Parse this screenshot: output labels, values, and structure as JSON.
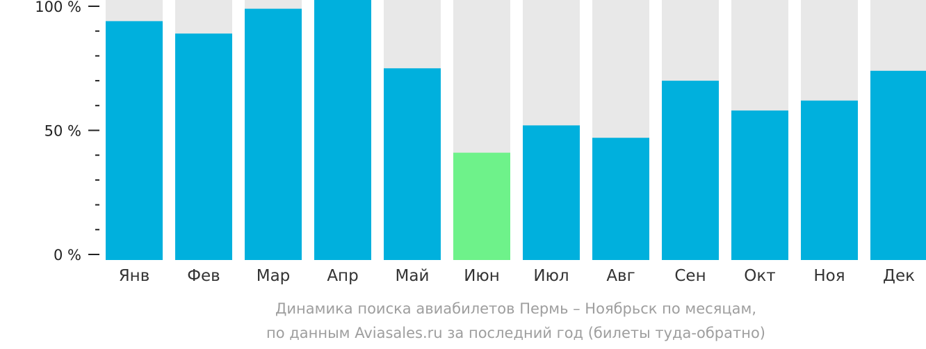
{
  "chart_data": {
    "type": "bar",
    "categories": [
      "Янв",
      "Фев",
      "Мар",
      "Апр",
      "Май",
      "Июн",
      "Июл",
      "Авг",
      "Сен",
      "Окт",
      "Ноя",
      "Дек"
    ],
    "values": [
      94,
      89,
      99,
      104,
      75,
      41,
      52,
      47,
      70,
      58,
      62,
      74
    ],
    "ylim": [
      0,
      100
    ],
    "yticks": [
      {
        "value": 0,
        "label": "0 %"
      },
      {
        "value": 50,
        "label": "50 %"
      },
      {
        "value": 100,
        "label": "100 %"
      }
    ],
    "highlight_index": 5,
    "colors": {
      "bar": "#00b0dd",
      "highlight": "#6ef28a",
      "background_bar": "#e8e8e8",
      "axis": "#222222"
    }
  },
  "caption": {
    "line1": "Динамика поиска авиабилетов Пермь – Ноябрьск по месяцам,",
    "line2": "по данным Aviasales.ru за последний год (билеты туда-обратно)"
  }
}
